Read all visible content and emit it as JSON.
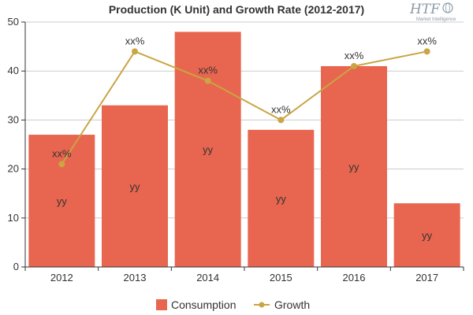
{
  "logo": {
    "mark": "HTF",
    "subtitle": "Market Intelligence"
  },
  "colors": {
    "bar": "#e8664f",
    "line": "#c9a543",
    "axis": "#333333",
    "grid": "#cccccc"
  },
  "chart_data": {
    "type": "bar",
    "title": "Production (K Unit) and Growth Rate (2012-2017)",
    "categories": [
      "2012",
      "2013",
      "2014",
      "2015",
      "2016",
      "2017"
    ],
    "ylim": [
      0,
      50
    ],
    "yticks": [
      0,
      10,
      20,
      30,
      40,
      50
    ],
    "series": [
      {
        "name": "Consumption",
        "type": "bar",
        "values": [
          27,
          33,
          48,
          28,
          41,
          13
        ],
        "labels": [
          "yy",
          "yy",
          "yy",
          "yy",
          "yy",
          "yy"
        ]
      },
      {
        "name": "Growth",
        "type": "line",
        "values": [
          21,
          44,
          38,
          30,
          41,
          44
        ],
        "labels": [
          "xx%",
          "xx%",
          "xx%",
          "xx%",
          "xx%",
          "xx%"
        ]
      }
    ]
  }
}
